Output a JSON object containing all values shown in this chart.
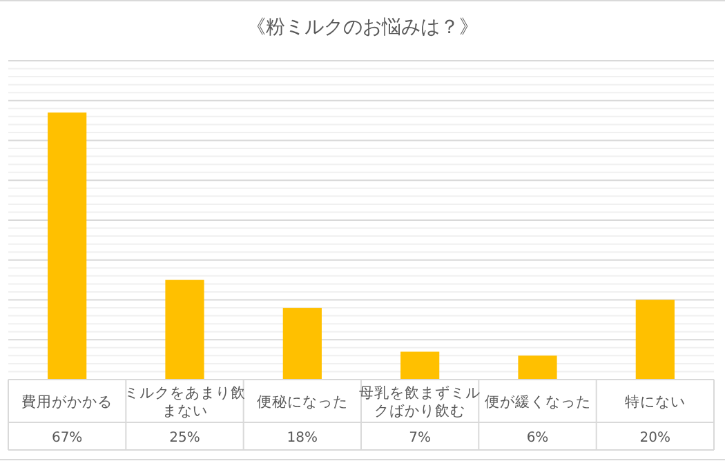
{
  "chart_data": {
    "type": "bar",
    "title": "《粉ミルクのお悩みは？》",
    "categories": [
      "費用がかかる",
      "ミルクをあまり飲まない",
      "便秘になった",
      "母乳を飲まずミルクばかり飲む",
      "便が緩くなった",
      "特にない"
    ],
    "values": [
      67,
      25,
      18,
      7,
      6,
      20
    ],
    "value_labels": [
      "67%",
      "25%",
      "18%",
      "7%",
      "6%",
      "20%"
    ],
    "color": "#ffc000",
    "ylim": [
      0,
      80
    ],
    "yticks": [
      {
        "value": 0,
        "label": null
      },
      {
        "value": 2,
        "label": null
      },
      {
        "value": 4,
        "label": null
      },
      {
        "value": 6,
        "label": null
      },
      {
        "value": 8,
        "label": null
      },
      {
        "value": 10,
        "label": null
      },
      {
        "value": 12,
        "label": null
      },
      {
        "value": 14,
        "label": null
      },
      {
        "value": 16,
        "label": null
      },
      {
        "value": 18,
        "label": null
      },
      {
        "value": 20,
        "label": null
      },
      {
        "value": 22,
        "label": null
      },
      {
        "value": 24,
        "label": null
      },
      {
        "value": 26,
        "label": null
      },
      {
        "value": 28,
        "label": null
      },
      {
        "value": 30,
        "label": null
      },
      {
        "value": 32,
        "label": null
      },
      {
        "value": 34,
        "label": null
      },
      {
        "value": 36,
        "label": null
      },
      {
        "value": 38,
        "label": null
      },
      {
        "value": 40,
        "label": null
      },
      {
        "value": 42,
        "label": null
      },
      {
        "value": 44,
        "label": null
      },
      {
        "value": 46,
        "label": null
      },
      {
        "value": 48,
        "label": null
      },
      {
        "value": 50,
        "label": null
      },
      {
        "value": 52,
        "label": null
      },
      {
        "value": 54,
        "label": null
      },
      {
        "value": 56,
        "label": null
      },
      {
        "value": 58,
        "label": null
      },
      {
        "value": 60,
        "label": null
      },
      {
        "value": 62,
        "label": null
      },
      {
        "value": 64,
        "label": null
      },
      {
        "value": 66,
        "label": null
      },
      {
        "value": 68,
        "label": null
      },
      {
        "value": 70,
        "label": null
      },
      {
        "value": 72,
        "label": null
      },
      {
        "value": 74,
        "label": null
      },
      {
        "value": 76,
        "label": null
      },
      {
        "value": 78,
        "label": null
      },
      {
        "value": 80,
        "label": null
      }
    ],
    "grid": "y",
    "tick_labels": "x"
  }
}
